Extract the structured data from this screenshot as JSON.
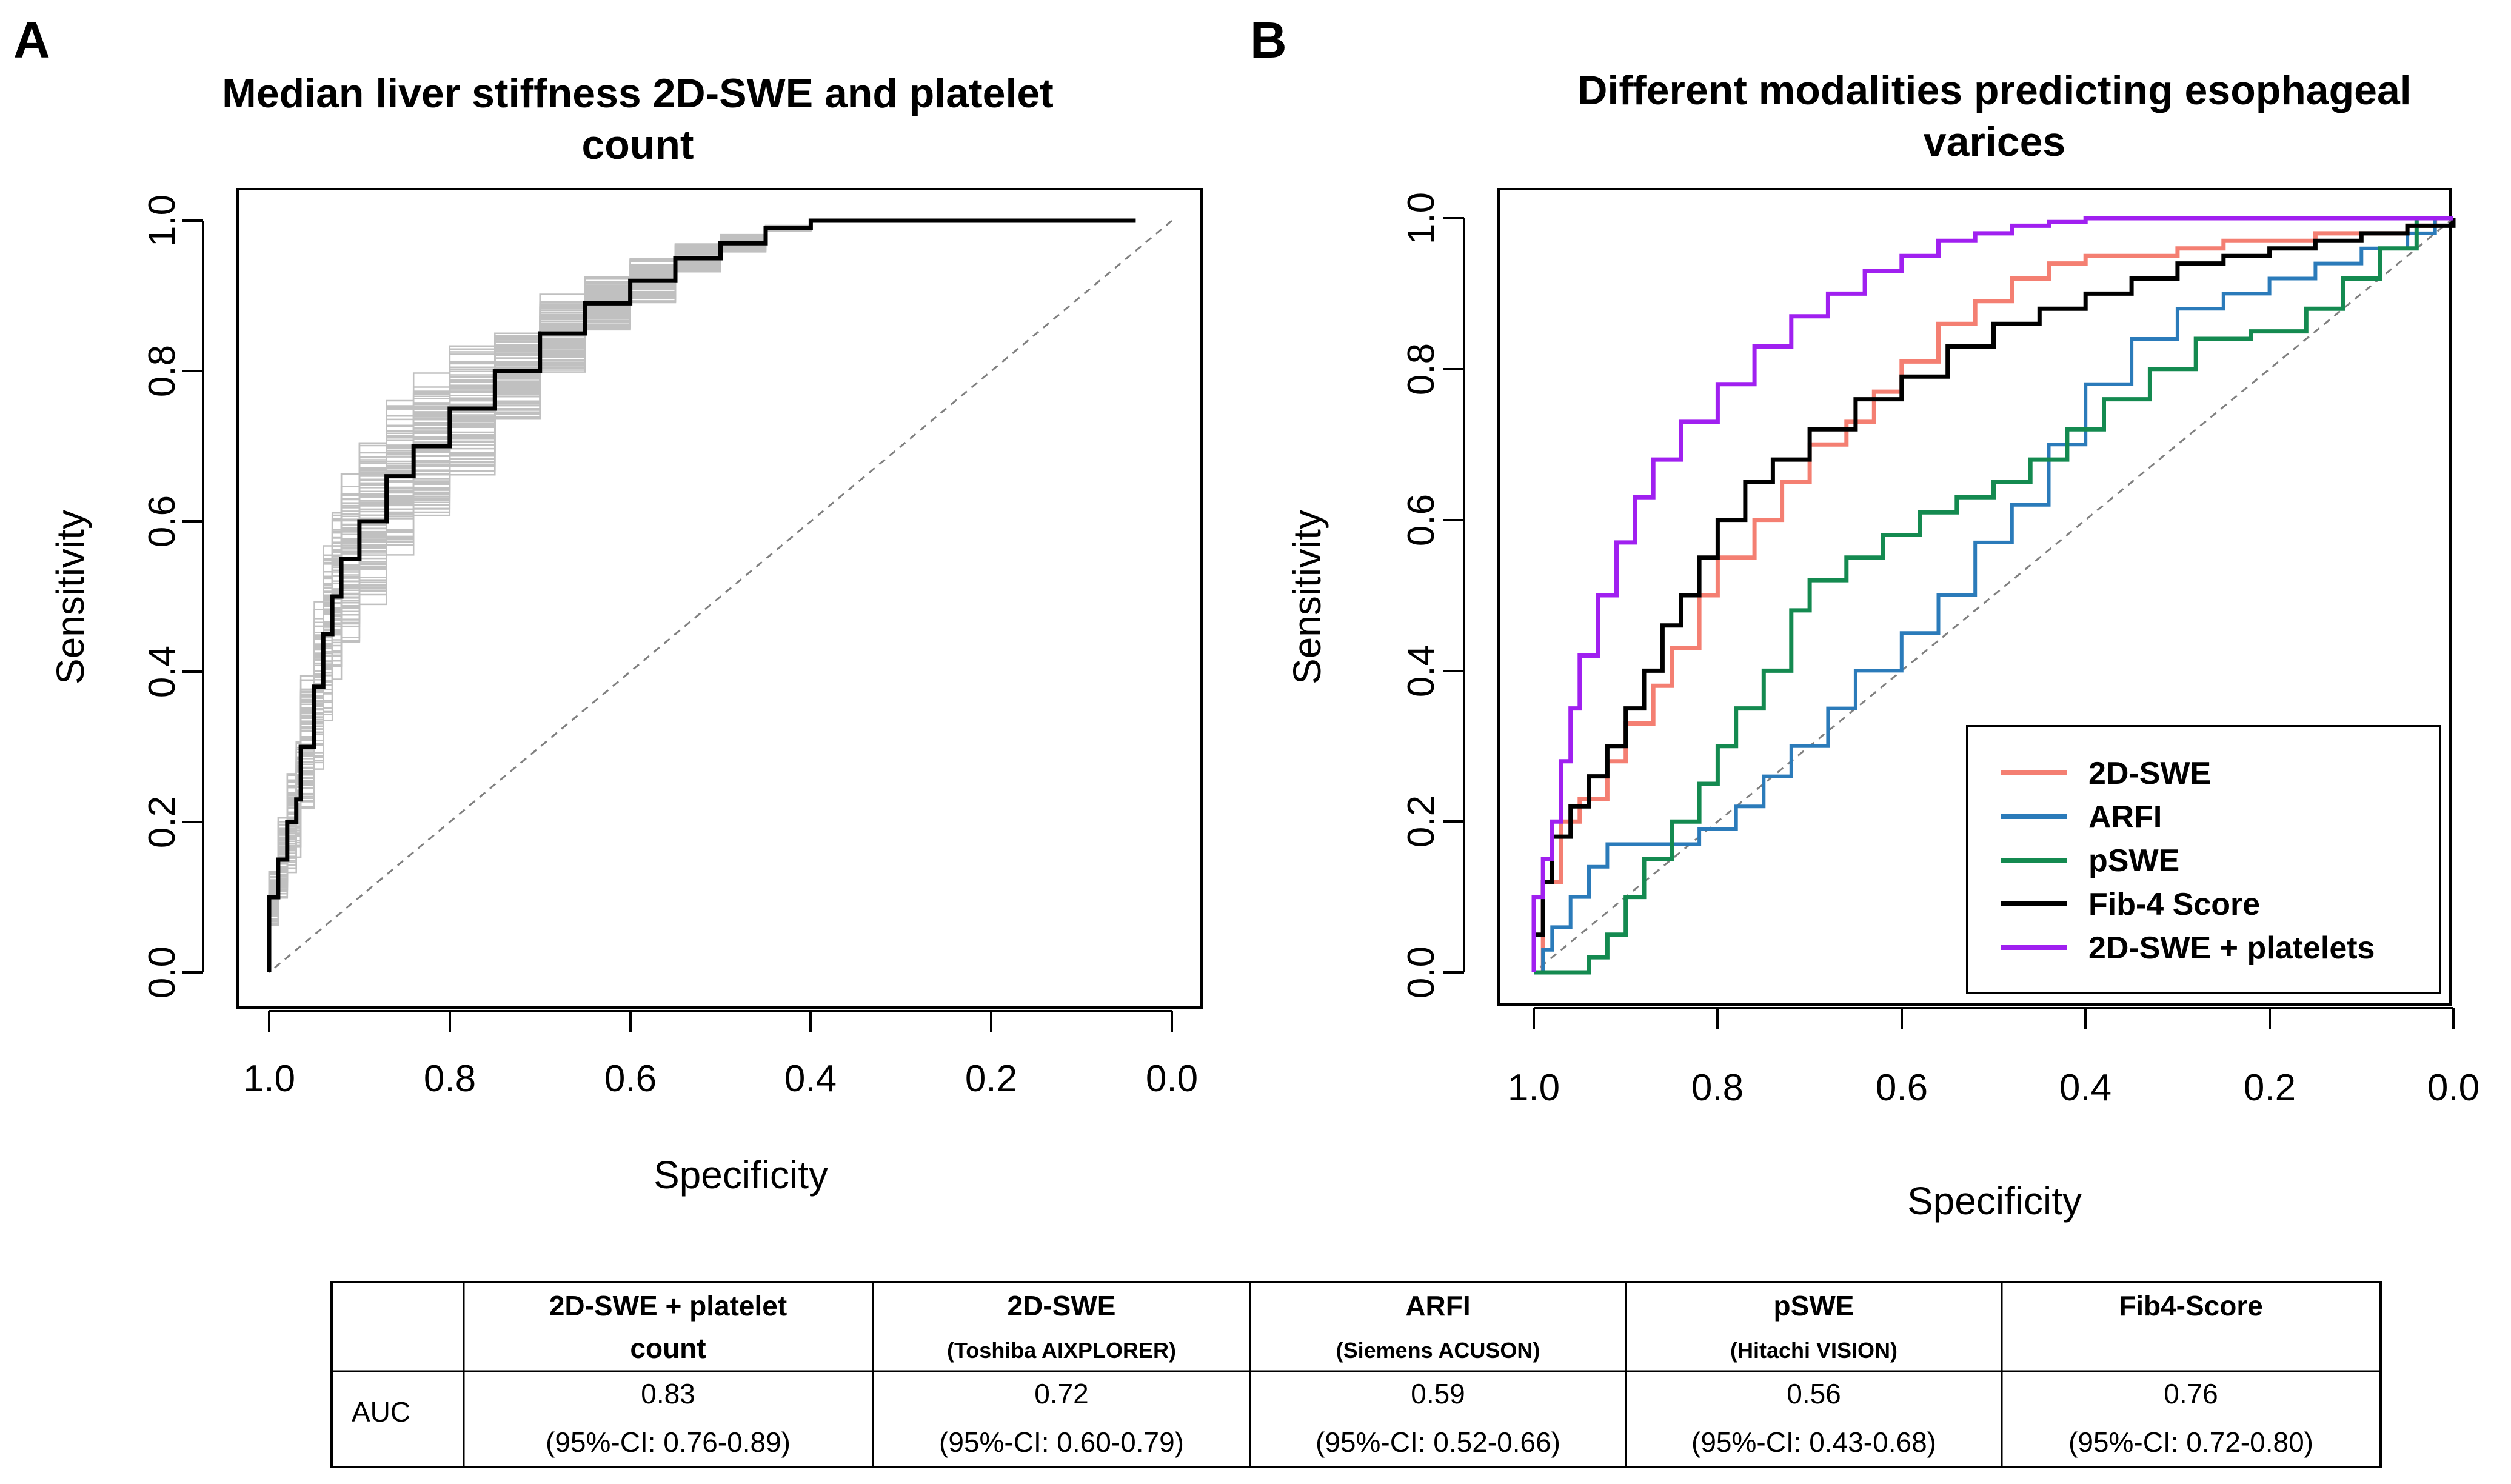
{
  "colors": {
    "panel_a_bootstrap": "#c0c0c0",
    "panel_a_main": "#000000",
    "diagonal": "#808080",
    "2d_swe": "#f47f72",
    "arfi": "#2b7bba",
    "pswe": "#148a50",
    "fib4": "#000000",
    "combo": "#a020f0"
  },
  "panels": {
    "a": {
      "letter": "A"
    },
    "b": {
      "letter": "B"
    }
  },
  "chart_data": [
    {
      "type": "line",
      "panel": "A",
      "title_lines": [
        "Median liver stiffness 2D-SWE and platelet",
        "count"
      ],
      "xlabel": "Specificity",
      "ylabel": "Sensitivity",
      "xlim": [
        1.0,
        0.0
      ],
      "ylim": [
        0.0,
        1.0
      ],
      "x_ticks": [
        "1.0",
        "0.8",
        "0.6",
        "0.4",
        "0.2",
        "0.0"
      ],
      "y_ticks": [
        "0.0",
        "0.2",
        "0.4",
        "0.6",
        "0.8",
        "1.0"
      ],
      "bootstrap_curve_count": 100,
      "series": [
        {
          "name": "Median ROC",
          "specificity": [
            1.0,
            1.0,
            0.99,
            0.98,
            0.97,
            0.965,
            0.95,
            0.94,
            0.93,
            0.92,
            0.9,
            0.87,
            0.84,
            0.8,
            0.75,
            0.7,
            0.65,
            0.6,
            0.55,
            0.5,
            0.45,
            0.4,
            0.3,
            0.2,
            0.04
          ],
          "sensitivity": [
            0.0,
            0.1,
            0.15,
            0.2,
            0.23,
            0.3,
            0.38,
            0.45,
            0.5,
            0.55,
            0.6,
            0.66,
            0.7,
            0.75,
            0.8,
            0.85,
            0.89,
            0.92,
            0.95,
            0.97,
            0.99,
            1.0,
            1.0,
            1.0,
            1.0
          ]
        }
      ]
    },
    {
      "type": "line",
      "panel": "B",
      "title_lines": [
        "Different modalities predicting esophageal",
        "varices"
      ],
      "xlabel": "Specificity",
      "ylabel": "Sensitivity",
      "xlim": [
        1.0,
        0.0
      ],
      "ylim": [
        0.0,
        1.0
      ],
      "x_ticks": [
        "1.0",
        "0.8",
        "0.6",
        "0.4",
        "0.2",
        "0.0"
      ],
      "y_ticks": [
        "0.0",
        "0.2",
        "0.4",
        "0.6",
        "0.8",
        "1.0"
      ],
      "legend_position": "bottom-right",
      "series": [
        {
          "name": "2D-SWE",
          "color_key": "2d_swe",
          "specificity": [
            1.0,
            0.99,
            0.97,
            0.95,
            0.92,
            0.9,
            0.87,
            0.85,
            0.82,
            0.8,
            0.76,
            0.73,
            0.7,
            0.66,
            0.63,
            0.6,
            0.56,
            0.52,
            0.48,
            0.44,
            0.4,
            0.35,
            0.3,
            0.25,
            0.2,
            0.15,
            0.1,
            0.05,
            0.02
          ],
          "sensitivity": [
            0.0,
            0.12,
            0.2,
            0.23,
            0.28,
            0.33,
            0.38,
            0.43,
            0.5,
            0.55,
            0.6,
            0.65,
            0.7,
            0.73,
            0.77,
            0.81,
            0.86,
            0.89,
            0.92,
            0.94,
            0.95,
            0.95,
            0.96,
            0.97,
            0.97,
            0.98,
            0.98,
            0.99,
            1.0
          ]
        },
        {
          "name": "ARFI",
          "color_key": "arfi",
          "specificity": [
            1.0,
            0.99,
            0.98,
            0.96,
            0.94,
            0.92,
            0.9,
            0.88,
            0.85,
            0.82,
            0.78,
            0.75,
            0.72,
            0.68,
            0.65,
            0.6,
            0.56,
            0.52,
            0.48,
            0.44,
            0.4,
            0.35,
            0.3,
            0.25,
            0.2,
            0.15,
            0.1,
            0.05,
            0.02
          ],
          "sensitivity": [
            0.0,
            0.03,
            0.06,
            0.1,
            0.14,
            0.17,
            0.17,
            0.17,
            0.17,
            0.19,
            0.22,
            0.26,
            0.3,
            0.35,
            0.4,
            0.45,
            0.5,
            0.57,
            0.62,
            0.7,
            0.78,
            0.84,
            0.88,
            0.9,
            0.92,
            0.94,
            0.96,
            0.98,
            1.0
          ]
        },
        {
          "name": "pSWE",
          "color_key": "pswe",
          "specificity": [
            1.0,
            0.98,
            0.96,
            0.94,
            0.92,
            0.9,
            0.88,
            0.85,
            0.82,
            0.8,
            0.78,
            0.75,
            0.72,
            0.7,
            0.66,
            0.62,
            0.58,
            0.54,
            0.5,
            0.46,
            0.42,
            0.38,
            0.33,
            0.28,
            0.22,
            0.16,
            0.12,
            0.08,
            0.04
          ],
          "sensitivity": [
            0.0,
            0.0,
            0.0,
            0.02,
            0.05,
            0.1,
            0.15,
            0.2,
            0.25,
            0.3,
            0.35,
            0.4,
            0.48,
            0.52,
            0.55,
            0.58,
            0.61,
            0.63,
            0.65,
            0.68,
            0.72,
            0.76,
            0.8,
            0.84,
            0.85,
            0.88,
            0.92,
            0.96,
            1.0
          ]
        },
        {
          "name": "Fib-4 Score",
          "color_key": "fib4",
          "specificity": [
            1.0,
            1.0,
            0.99,
            0.98,
            0.96,
            0.94,
            0.92,
            0.9,
            0.88,
            0.86,
            0.84,
            0.82,
            0.8,
            0.77,
            0.74,
            0.7,
            0.65,
            0.6,
            0.55,
            0.5,
            0.45,
            0.4,
            0.35,
            0.3,
            0.25,
            0.2,
            0.15,
            0.1,
            0.05,
            0.0
          ],
          "sensitivity": [
            0.0,
            0.05,
            0.12,
            0.18,
            0.22,
            0.26,
            0.3,
            0.35,
            0.4,
            0.46,
            0.5,
            0.55,
            0.6,
            0.65,
            0.68,
            0.72,
            0.76,
            0.79,
            0.83,
            0.86,
            0.88,
            0.9,
            0.92,
            0.94,
            0.95,
            0.96,
            0.97,
            0.98,
            0.99,
            1.0
          ]
        },
        {
          "name": "2D-SWE + platelets",
          "color_key": "combo",
          "specificity": [
            1.0,
            1.0,
            0.99,
            0.98,
            0.97,
            0.96,
            0.95,
            0.93,
            0.91,
            0.89,
            0.87,
            0.84,
            0.8,
            0.76,
            0.72,
            0.68,
            0.64,
            0.6,
            0.56,
            0.52,
            0.48,
            0.44,
            0.4,
            0.3,
            0.2,
            0.1,
            0.0
          ],
          "sensitivity": [
            0.0,
            0.1,
            0.15,
            0.2,
            0.28,
            0.35,
            0.42,
            0.5,
            0.57,
            0.63,
            0.68,
            0.73,
            0.78,
            0.83,
            0.87,
            0.9,
            0.93,
            0.95,
            0.97,
            0.98,
            0.99,
            0.995,
            1.0,
            1.0,
            1.0,
            1.0,
            1.0
          ]
        }
      ]
    }
  ],
  "table": {
    "row_label": "AUC",
    "columns": [
      {
        "header": "2D-SWE + platelet",
        "header_line2": "count",
        "subheader": "",
        "auc": "0.83",
        "ci": "(95%-CI: 0.76-0.89)"
      },
      {
        "header": "2D-SWE",
        "header_line2": "",
        "subheader": "(Toshiba AIXPLORER)",
        "auc": "0.72",
        "ci": "(95%-CI: 0.60-0.79)"
      },
      {
        "header": "ARFI",
        "header_line2": "",
        "subheader": "(Siemens ACUSON)",
        "auc": "0.59",
        "ci": "(95%-CI: 0.52-0.66)"
      },
      {
        "header": "pSWE",
        "header_line2": "",
        "subheader": "(Hitachi VISION)",
        "auc": "0.56",
        "ci": "(95%-CI: 0.43-0.68)"
      },
      {
        "header": "Fib4-Score",
        "header_line2": "",
        "subheader": "",
        "auc": "0.76",
        "ci": "(95%-CI: 0.72-0.80)"
      }
    ]
  }
}
